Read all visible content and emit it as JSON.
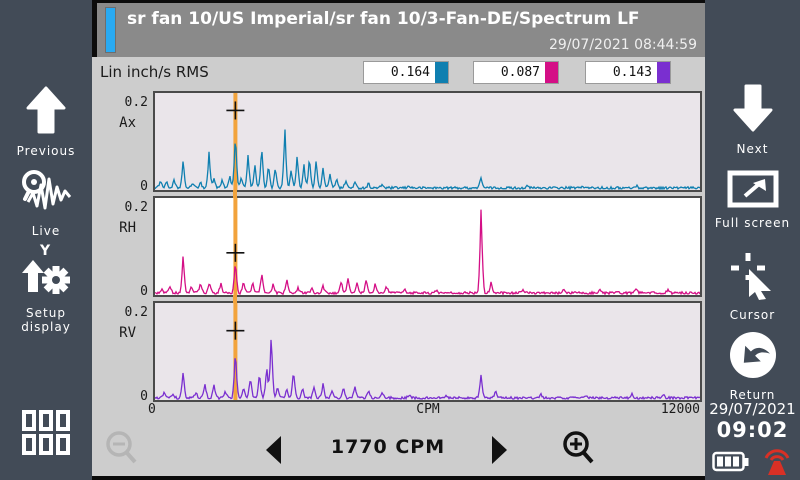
{
  "header": {
    "title": "sr fan 10/US Imperial/sr fan 10/3-Fan-DE/Spectrum LF",
    "timestamp": "29/07/2021 08:44:59",
    "accent_color": "#29aaf2"
  },
  "toolbar": {
    "unit_label": "Lin inch/s RMS",
    "readings": [
      {
        "value": "0.164",
        "color": "#0f7fb0"
      },
      {
        "value": "0.087",
        "color": "#d40f86"
      },
      {
        "value": "0.143",
        "color": "#7a2fd0"
      }
    ]
  },
  "left_sidebar": {
    "items": [
      {
        "label": "Previous",
        "icon": "arrow-up-icon"
      },
      {
        "label": "Live",
        "icon": "live-waveform-icon"
      },
      {
        "label": "Setup display",
        "icon": "setup-display-icon"
      }
    ],
    "menu_icon": "grid-menu-icon"
  },
  "right_sidebar": {
    "items": [
      {
        "label": "Next",
        "icon": "arrow-down-icon"
      },
      {
        "label": "Full screen",
        "icon": "fullscreen-icon"
      },
      {
        "label": "Cursor",
        "icon": "cursor-crosshair-icon"
      },
      {
        "label": "Return",
        "icon": "return-arrow-icon"
      }
    ],
    "date": "29/07/2021",
    "time": "09:02"
  },
  "bottom_bar": {
    "cursor_frequency": "1770 CPM",
    "zoom_out_enabled": false,
    "zoom_in_enabled": true
  },
  "chart_data": {
    "type": "line",
    "title": "Spectrum LF - 3 channel vibration spectra",
    "xlabel": "CPM",
    "x_range": [
      0,
      12000
    ],
    "y_range": [
      0,
      0.2
    ],
    "x_tick_labels": [
      "0",
      "CPM",
      "12000"
    ],
    "y_tick_labels": [
      "0",
      "0.2"
    ],
    "grid": false,
    "legend_position": "none",
    "cursor": {
      "cpm": 1770,
      "color": "#f2a33c",
      "markers": [
        0.164,
        0.087,
        0.143
      ]
    },
    "series": [
      {
        "name": "Ax",
        "color": "#0f7fb0",
        "plot_bg": "#eae5ea",
        "rms": 0.164,
        "peaks": [
          [
            120,
            0.018
          ],
          [
            250,
            0.014
          ],
          [
            420,
            0.016
          ],
          [
            620,
            0.057
          ],
          [
            830,
            0.012
          ],
          [
            1000,
            0.014
          ],
          [
            1190,
            0.075
          ],
          [
            1300,
            0.022
          ],
          [
            1480,
            0.016
          ],
          [
            1650,
            0.025
          ],
          [
            1770,
            0.115
          ],
          [
            1900,
            0.025
          ],
          [
            2050,
            0.07
          ],
          [
            2200,
            0.048
          ],
          [
            2350,
            0.088
          ],
          [
            2500,
            0.05
          ],
          [
            2650,
            0.045
          ],
          [
            2860,
            0.125
          ],
          [
            3000,
            0.04
          ],
          [
            3130,
            0.068
          ],
          [
            3280,
            0.05
          ],
          [
            3400,
            0.066
          ],
          [
            3550,
            0.06
          ],
          [
            3700,
            0.042
          ],
          [
            3850,
            0.03
          ],
          [
            4000,
            0.022
          ],
          [
            4200,
            0.016
          ],
          [
            4400,
            0.012
          ],
          [
            4700,
            0.01
          ],
          [
            5000,
            0.008
          ],
          [
            5600,
            0.005
          ],
          [
            7180,
            0.024
          ],
          [
            8200,
            0.004
          ],
          [
            9400,
            0.004
          ],
          [
            10600,
            0.005
          ]
        ]
      },
      {
        "name": "RH",
        "color": "#d40f86",
        "plot_bg": "#ffffff",
        "rms": 0.087,
        "peaks": [
          [
            150,
            0.01
          ],
          [
            330,
            0.014
          ],
          [
            620,
            0.08
          ],
          [
            800,
            0.012
          ],
          [
            1000,
            0.022
          ],
          [
            1200,
            0.024
          ],
          [
            1450,
            0.02
          ],
          [
            1770,
            0.067
          ],
          [
            1950,
            0.024
          ],
          [
            2150,
            0.022
          ],
          [
            2350,
            0.042
          ],
          [
            2600,
            0.02
          ],
          [
            2900,
            0.03
          ],
          [
            3150,
            0.012
          ],
          [
            3450,
            0.012
          ],
          [
            3700,
            0.014
          ],
          [
            4100,
            0.026
          ],
          [
            4250,
            0.032
          ],
          [
            4450,
            0.024
          ],
          [
            4650,
            0.03
          ],
          [
            4850,
            0.02
          ],
          [
            5100,
            0.014
          ],
          [
            5500,
            0.01
          ],
          [
            6200,
            0.006
          ],
          [
            7180,
            0.178
          ],
          [
            7400,
            0.022
          ],
          [
            8100,
            0.008
          ],
          [
            9000,
            0.006
          ],
          [
            9800,
            0.008
          ],
          [
            10600,
            0.01
          ],
          [
            11300,
            0.008
          ]
        ]
      },
      {
        "name": "RV",
        "color": "#7a2fd0",
        "plot_bg": "#eae5ea",
        "rms": 0.143,
        "peaks": [
          [
            200,
            0.014
          ],
          [
            400,
            0.01
          ],
          [
            620,
            0.054
          ],
          [
            900,
            0.012
          ],
          [
            1100,
            0.03
          ],
          [
            1300,
            0.028
          ],
          [
            1550,
            0.014
          ],
          [
            1770,
            0.102
          ],
          [
            1950,
            0.022
          ],
          [
            2100,
            0.044
          ],
          [
            2300,
            0.052
          ],
          [
            2460,
            0.068
          ],
          [
            2560,
            0.138
          ],
          [
            2700,
            0.024
          ],
          [
            2900,
            0.02
          ],
          [
            3050,
            0.06
          ],
          [
            3250,
            0.022
          ],
          [
            3500,
            0.024
          ],
          [
            3700,
            0.03
          ],
          [
            3900,
            0.018
          ],
          [
            4150,
            0.022
          ],
          [
            4400,
            0.026
          ],
          [
            4700,
            0.016
          ],
          [
            5000,
            0.012
          ],
          [
            5600,
            0.008
          ],
          [
            6400,
            0.006
          ],
          [
            7180,
            0.052
          ],
          [
            7500,
            0.014
          ],
          [
            8500,
            0.007
          ],
          [
            9500,
            0.006
          ],
          [
            10500,
            0.008
          ],
          [
            11200,
            0.006
          ]
        ]
      }
    ]
  }
}
